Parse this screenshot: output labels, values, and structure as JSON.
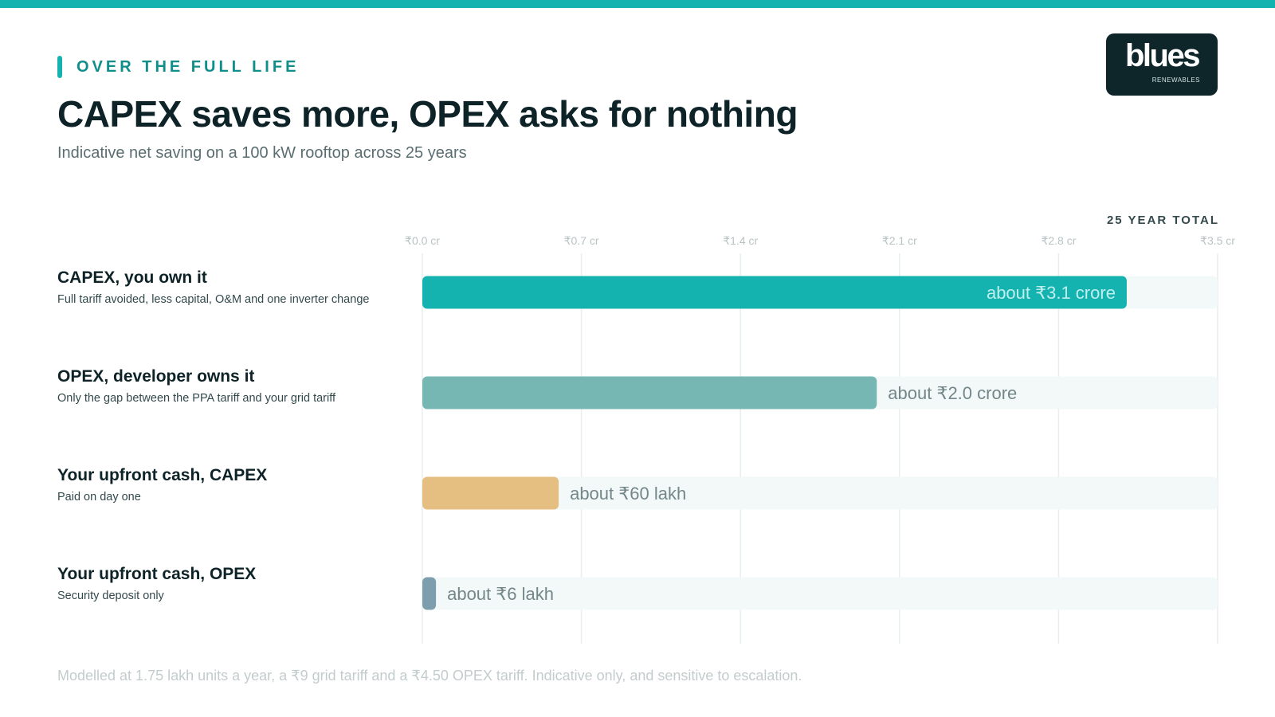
{
  "header": {
    "kicker": "OVER THE FULL LIFE",
    "title": "CAPEX saves more, OPEX asks for nothing",
    "subtitle": "Indicative net saving on a 100 kW rooftop across 25 years",
    "column_header": "25 YEAR TOTAL"
  },
  "logo": {
    "word": "blues",
    "sub": "RENEWABLES"
  },
  "rows": [
    {
      "title": "CAPEX, you own it",
      "description": "Full tariff avoided, less capital, O&M and one inverter change"
    },
    {
      "title": "OPEX, developer owns it",
      "description": "Only the gap between the PPA tariff and your grid tariff"
    },
    {
      "title": "Your upfront cash, CAPEX",
      "description": "Paid on day one"
    },
    {
      "title": "Your upfront cash, OPEX",
      "description": "Security deposit only"
    }
  ],
  "footnote": "Modelled at 1.75 lakh units a year, a ₹9 grid tariff and a ₹4.50 OPEX tariff. Indicative only, and sensitive to escalation.",
  "chart_data": {
    "type": "bar",
    "orientation": "horizontal",
    "categories": [
      "CAPEX, you own it",
      "OPEX, developer owns it",
      "Your upfront cash, CAPEX",
      "Your upfront cash, OPEX"
    ],
    "values": [
      3.1,
      2.0,
      0.6,
      0.06
    ],
    "unit": "₹ crore",
    "data_labels": [
      "about ₹3.1 crore",
      "about ₹2.0 crore",
      "about ₹60 lakh",
      "about ₹6 lakh"
    ],
    "label_inside": [
      true,
      false,
      false,
      false
    ],
    "colors": [
      "#14b3b0",
      "#77b7b3",
      "#e5bf82",
      "#7d9ead"
    ],
    "track_color": "#f3f8f8",
    "xlim": [
      0,
      3.5
    ],
    "ticks": [
      0,
      0.7,
      1.4,
      2.1,
      2.8,
      3.5
    ],
    "tick_labels": [
      "₹0.0 cr",
      "₹0.7 cr",
      "₹1.4 cr",
      "₹2.1 cr",
      "₹2.8 cr",
      "₹3.5 cr"
    ],
    "grid": true
  }
}
